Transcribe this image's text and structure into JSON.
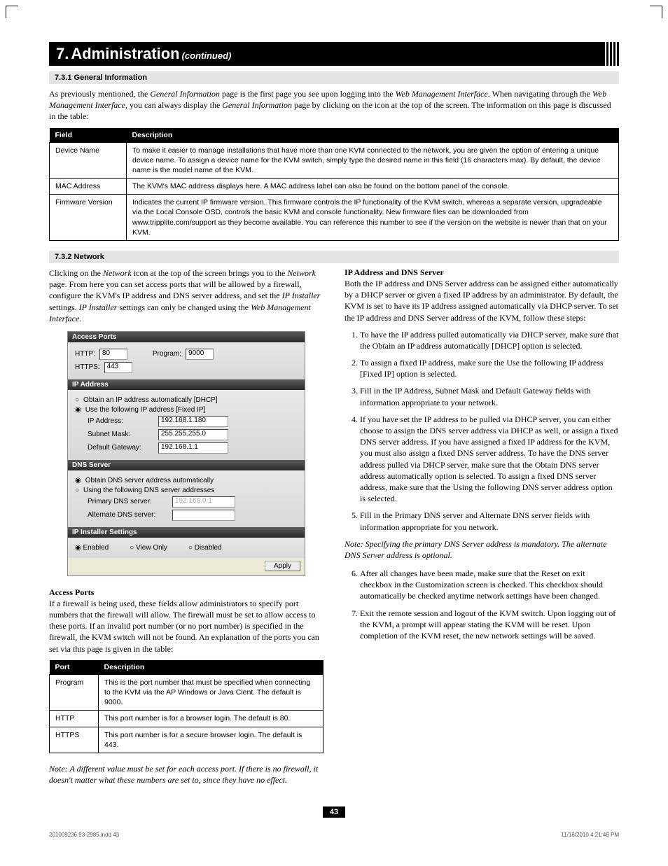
{
  "header": {
    "number": "7.",
    "title": "Administration",
    "continued": "(continued)"
  },
  "section_731": {
    "heading": "7.3.1 General Information",
    "intro_html": "As previously mentioned, the <span class=\"ital\">General Information</span> page is the first page you see upon logging into the <span class=\"ital\">Web Management Interface</span>. When navigating through the <span class=\"ital\">Web Management Interface</span>, you can always display the <span class=\"ital\">General Information</span> page by clicking on the icon at the top of the screen. The information on this page is discussed in the table:"
  },
  "table1": {
    "headers": [
      "Field",
      "Description"
    ],
    "rows": [
      [
        "Device Name",
        "To make it easier to manage installations that have more than one KVM connected to the network, you are given the option of entering a unique device name. To assign a device name for the KVM switch, simply type the desired name in this field (16 characters max). By default, the device name is the model name of the KVM."
      ],
      [
        "MAC Address",
        "The KVM's MAC address displays here. A MAC address label can also be found on the bottom panel of the console."
      ],
      [
        "Firmware Version",
        "Indicates the current IP firmware version. This firmware controls the IP functionality of the KVM switch, whereas a separate version, upgradeable via the <span class=\"ital\">Local Console OSD</span>, controls the basic KVM and console functionality. New firmware files can be downloaded from www.tripplite.com/support as they become available. You can reference this number to see if the version on the website is newer than that on your KVM."
      ]
    ]
  },
  "section_732": {
    "heading": "7.3.2 Network",
    "left_intro_html": "Clicking on the <span class=\"ital\">Network</span> icon at the top of the screen brings you to the <span class=\"ital\">Network</span> page. From here you can set access ports that will be allowed by a firewall, configure the KVM's IP address and DNS server address, and set the <span class=\"ital\">IP Installer</span> settings. <span class=\"ital\">IP Installer</span> settings can only be changed using the <span class=\"ital\">Web Management Interface</span>."
  },
  "screenshot": {
    "access_ports": {
      "title": "Access Ports",
      "http_label": "HTTP:",
      "http_val": "80",
      "program_label": "Program:",
      "program_val": "9000",
      "https_label": "HTTPS:",
      "https_val": "443"
    },
    "ip_address": {
      "title": "IP Address",
      "opt_dhcp": "Obtain an IP address automatically [DHCP]",
      "opt_fixed": "Use the following IP address [Fixed IP]",
      "ip_label": "IP Address:",
      "ip_val": "192.168.1.180",
      "mask_label": "Subnet Mask:",
      "mask_val": "255.255.255.0",
      "gw_label": "Default Gateway:",
      "gw_val": "192.168.1.1"
    },
    "dns": {
      "title": "DNS Server",
      "opt_auto": "Obtain DNS server address automatically",
      "opt_manual": "Using the following DNS server addresses",
      "primary_label": "Primary DNS server:",
      "primary_val": "192.168.0.1",
      "alt_label": "Alternate DNS server:",
      "alt_val": ""
    },
    "installer": {
      "title": "IP Installer Settings",
      "enabled": "Enabled",
      "view": "View Only",
      "disabled": "Disabled"
    },
    "apply": "Apply"
  },
  "access_ports": {
    "heading": "Access Ports",
    "intro": "If a firewall is being used, these fields allow administrators to specify port numbers that the firewall will allow. The firewall must be set to allow access to these ports. If an invalid port number (or no port number) is specified in the firewall, the KVM switch will not be found. An explanation of the ports you can set via this page is given in the table:"
  },
  "table2": {
    "headers": [
      "Port",
      "Description"
    ],
    "rows": [
      [
        "Program",
        "This is the port number that must be specified when connecting to the KVM via the AP Windows or Java Cient. The default is 9000."
      ],
      [
        "HTTP",
        "This port number is for a browser login. The default is 80."
      ],
      [
        "HTTPS",
        "This port number is for a secure browser login. The default is 443."
      ]
    ]
  },
  "ports_note": "Note: A different value must be set for each access port. If there is no firewall, it doesn't matter what these numbers are set to, since they have no effect.",
  "right_col": {
    "heading": "IP Address and DNS Server",
    "intro": "Both the IP address and DNS Server address can be assigned either automatically by a DHCP server or given a fixed IP address by an administrator. By default, the KVM is set to have its IP address assigned automatically via DHCP server. To set the IP address and DNS Server address of the KVM, follow these steps:",
    "steps": [
      "To have the IP address pulled automatically via DHCP server, make sure that the <span class=\"ital\">Obtain an IP address automatically [DHCP]</span> option is selected.",
      "To assign a fixed IP address, make sure the <span class=\"ital\">Use the following IP address [Fixed IP]</span> option is selected.",
      "Fill in the <span class=\"ital\">IP Address, Subnet Mask</span> and <span class=\"ital\">Default Gateway</span> fields with information appropriate to your network.",
      "If you have set the IP address to be pulled via DHCP server, you can either choose to assign the DNS server address via DHCP as well, or assign a fixed DNS server address. If you have assigned a fixed IP address for the KVM, you must also assign a fixed DNS server address. To have the DNS server address pulled via DHCP server, make sure that the <span class=\"ital\">Obtain DNS server address automatically</span> option is selected. To assign a fixed DNS server address, make sure that the <span class=\"ital\">Using the following DNS server address</span> option is selected.",
      "Fill in the <span class=\"ital\">Primary DNS server</span> and <span class=\"ital\">Alternate DNS server</span> fields with information appropriate for you network."
    ],
    "mid_note": "Note: Specifying the primary DNS Server address is mandatory. The alternate DNS Server address is optional.",
    "steps2": [
      "After all changes have been made, make sure that the <span class=\"ital\">Reset on exit</span> checkbox in the <span class=\"ital\">Customization</span> screen is checked. This checkbox should automatically be checked anytime network settings have been changed.",
      "Exit the remote session and logout of the KVM switch. Upon logging out of the KVM, a prompt will appear stating the KVM will be reset. Upon completion of the KVM reset, the new network settings will be saved."
    ]
  },
  "page_number": "43",
  "footer": {
    "left": "201009236 93-2985.indd   43",
    "right": "11/18/2010   4:21:48 PM"
  }
}
